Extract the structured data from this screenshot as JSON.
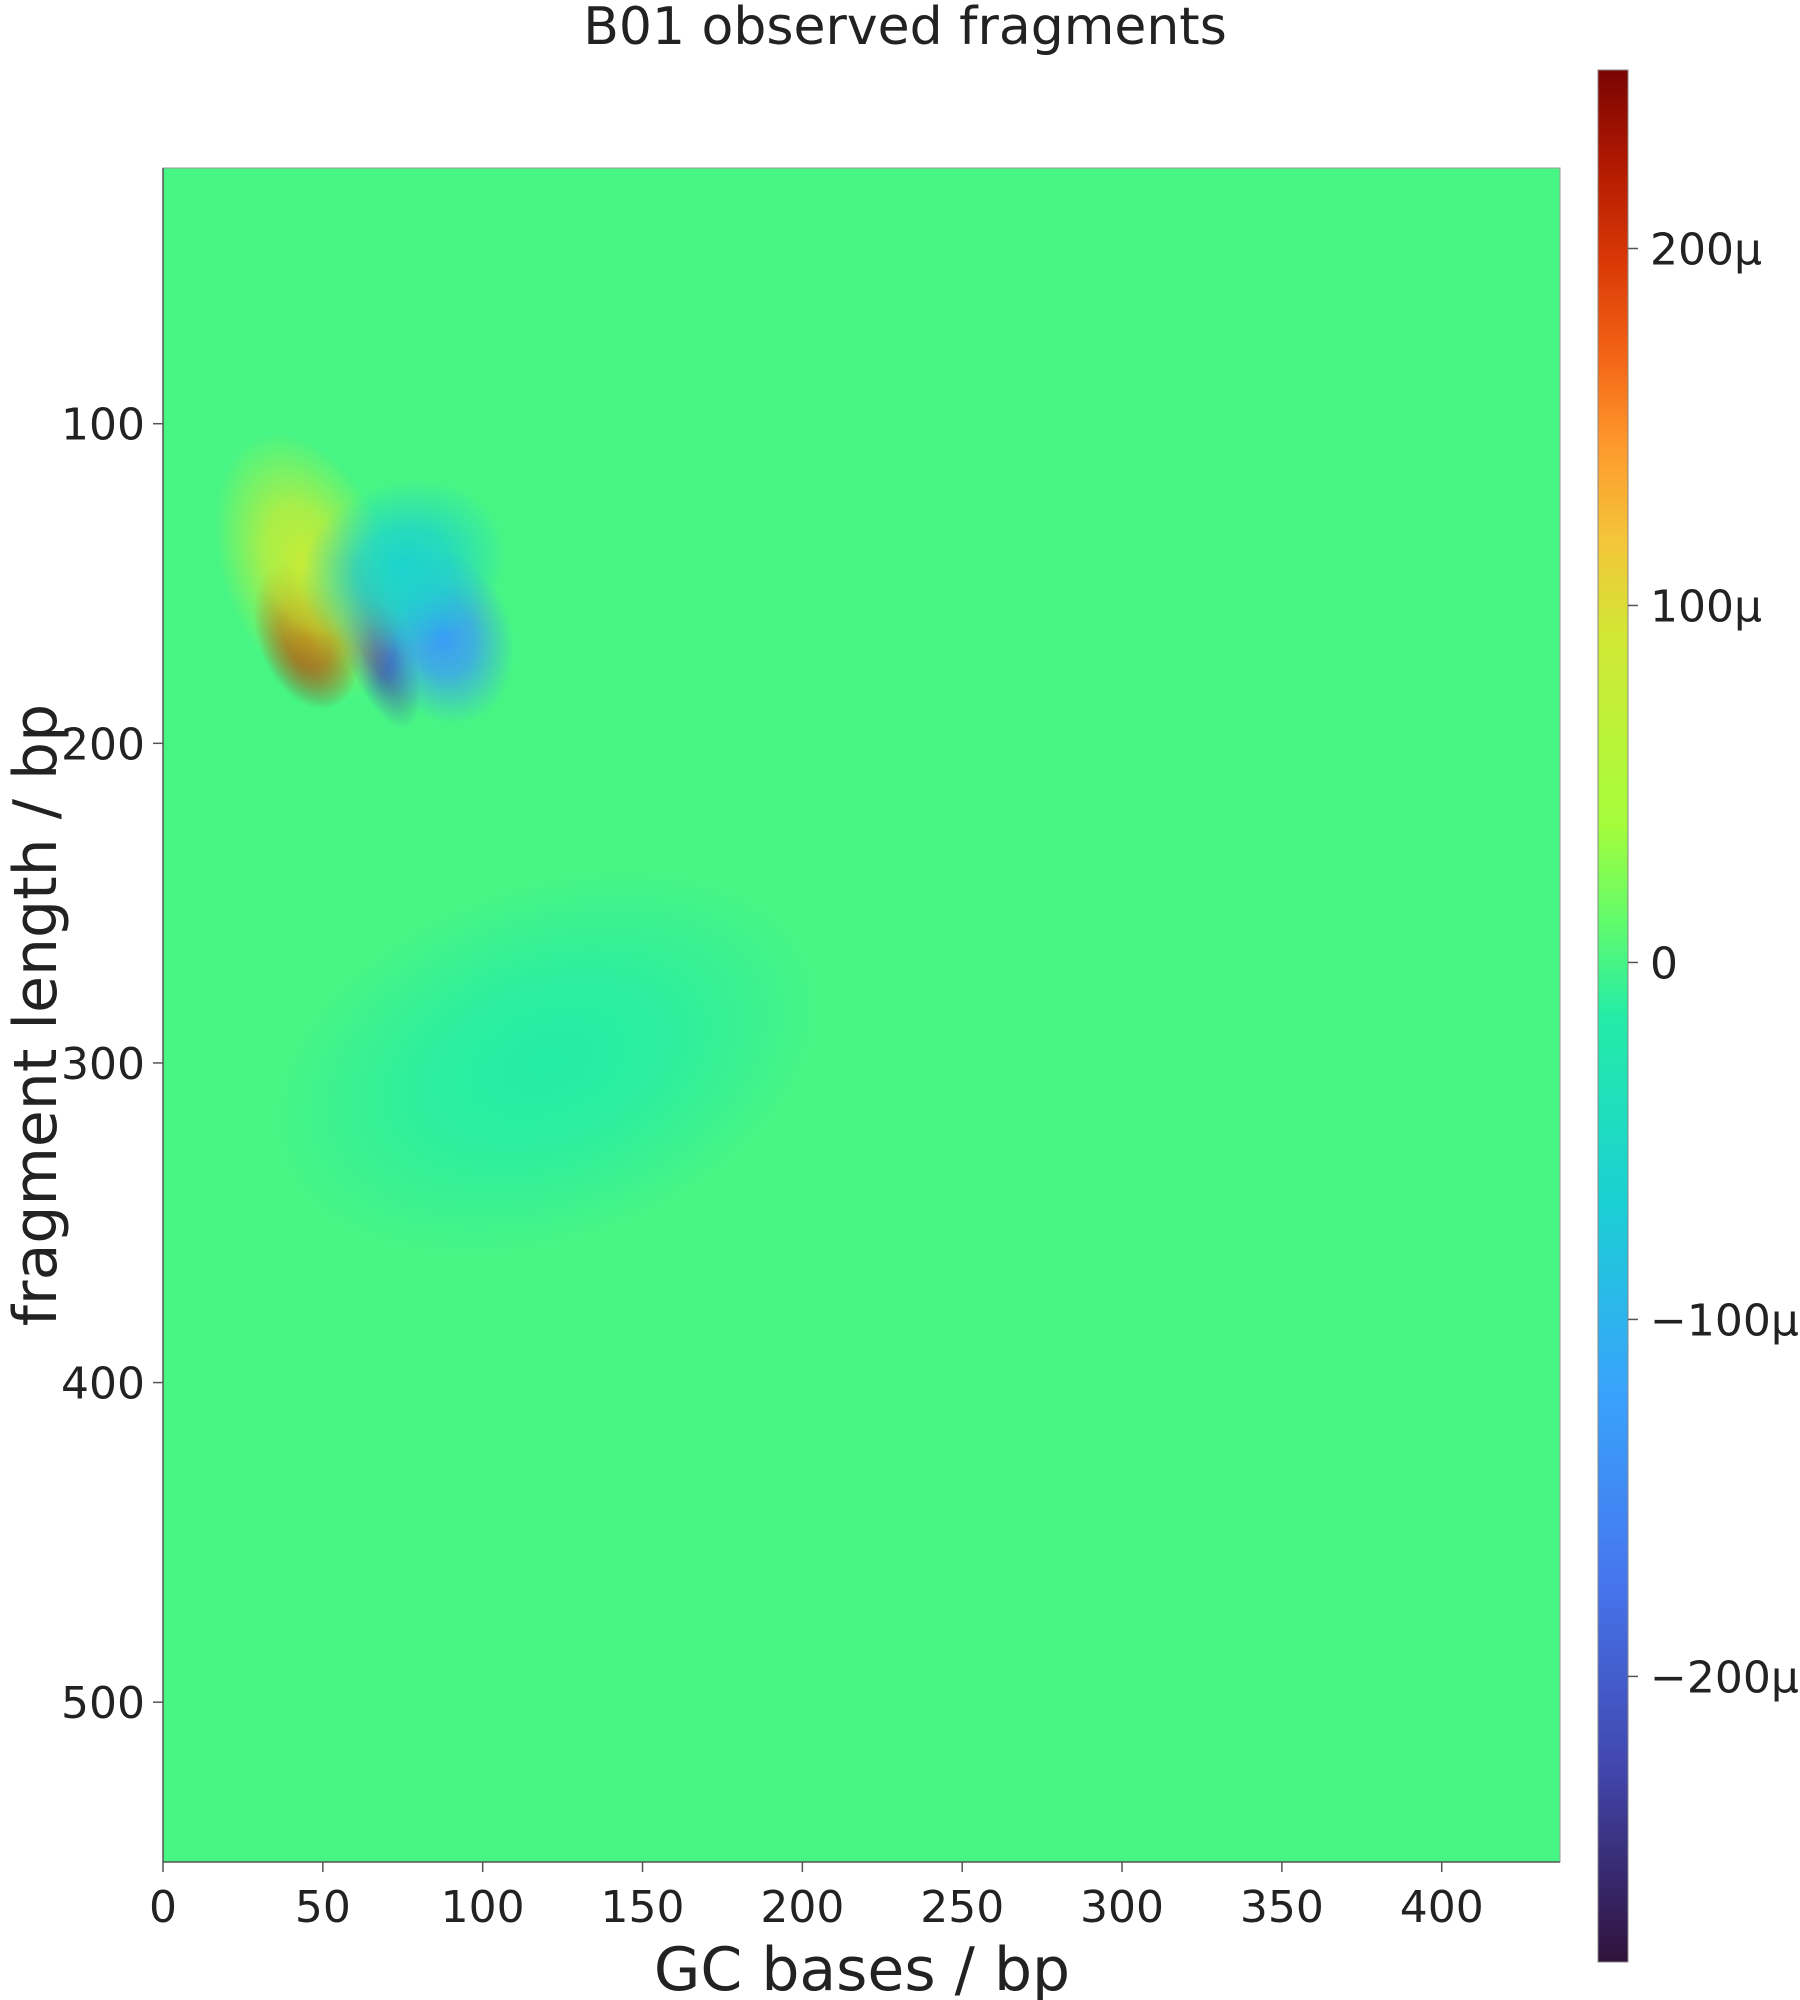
{
  "chart_data": {
    "type": "heatmap",
    "title": "B01 observed fragments",
    "xlabel": "GC bases / bp",
    "ylabel": "fragment length / bp",
    "xlim": [
      0,
      437
    ],
    "ylim": [
      550,
      20
    ],
    "x_ticks": [
      0,
      50,
      100,
      150,
      200,
      250,
      300,
      350,
      400
    ],
    "y_ticks": [
      100,
      200,
      300,
      400,
      500
    ],
    "colorbar": {
      "colormap": "turbo",
      "range": [
        -0.00028,
        0.00025
      ],
      "tick_values": [
        0.0002,
        0.0001,
        0,
        -0.0001,
        -0.0002
      ],
      "tick_labels": [
        "200μ",
        "100μ",
        "0",
        "−100μ",
        "−200μ"
      ]
    },
    "background_value": 0,
    "hotspots": [
      {
        "x": 45,
        "y": 166,
        "sx": 7,
        "sy": 11,
        "value": 0.00023
      },
      {
        "x": 66,
        "y": 166,
        "sx": 5,
        "sy": 14,
        "value": -0.00022
      },
      {
        "x": 87,
        "y": 166,
        "sx": 10,
        "sy": 13,
        "value": -0.00013
      },
      {
        "x": 45,
        "y": 145,
        "sx": 12,
        "sy": 20,
        "value": 8e-05
      },
      {
        "x": 75,
        "y": 145,
        "sx": 15,
        "sy": 12,
        "value": -6e-05
      },
      {
        "x": 120,
        "y": 300,
        "sx": 40,
        "sy": 25,
        "value": -1.5e-05
      }
    ],
    "grid": false
  }
}
